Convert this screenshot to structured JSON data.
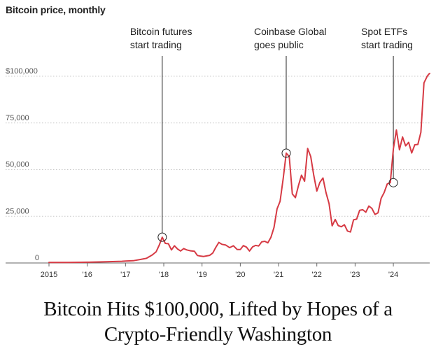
{
  "header": {
    "title": "Bitcoin price, monthly"
  },
  "headline": {
    "line1": "Bitcoin Hits $100,000, Lifted by Hopes of a",
    "line2": "Crypto-Friendly Washington"
  },
  "colors": {
    "line": "#d63a44",
    "grid": "#c8c8c8",
    "axis": "#666666",
    "annotation": "#222222"
  },
  "chart_data": {
    "type": "line",
    "title": "Bitcoin price, monthly",
    "xlabel": "",
    "ylabel": "",
    "xlim": [
      2015.0,
      2024.95
    ],
    "ylim": [
      0,
      100000
    ],
    "grid": true,
    "legend": "none",
    "y_ticks": [
      {
        "value": 0,
        "label": "0"
      },
      {
        "value": 25000,
        "label": "25,000"
      },
      {
        "value": 50000,
        "label": "50,000"
      },
      {
        "value": 75000,
        "label": "75,000"
      },
      {
        "value": 100000,
        "label": "$100,000"
      }
    ],
    "x_ticks": [
      {
        "value": 2015,
        "label": "2015"
      },
      {
        "value": 2016,
        "label": "'16"
      },
      {
        "value": 2017,
        "label": "'17"
      },
      {
        "value": 2018,
        "label": "'18"
      },
      {
        "value": 2019,
        "label": "'19"
      },
      {
        "value": 2020,
        "label": "'20"
      },
      {
        "value": 2021,
        "label": "'21"
      },
      {
        "value": 2022,
        "label": "'22"
      },
      {
        "value": 2023,
        "label": "'23"
      },
      {
        "value": 2024,
        "label": "'24"
      }
    ],
    "series": [
      {
        "x": [
          2015.0,
          2015.5,
          2016.0,
          2016.5,
          2016.9,
          2017.0,
          2017.2,
          2017.4,
          2017.55,
          2017.7,
          2017.8,
          2017.88,
          2017.96,
          2018.04,
          2018.12,
          2018.2,
          2018.28,
          2018.36,
          2018.44,
          2018.52,
          2018.6,
          2018.7,
          2018.8,
          2018.88,
          2018.96,
          2019.04,
          2019.12,
          2019.2,
          2019.28,
          2019.36,
          2019.44,
          2019.52,
          2019.62,
          2019.72,
          2019.82,
          2019.92,
          2020.0,
          2020.08,
          2020.16,
          2020.24,
          2020.32,
          2020.4,
          2020.48,
          2020.56,
          2020.64,
          2020.72,
          2020.8,
          2020.88,
          2020.96,
          2021.04,
          2021.12,
          2021.2,
          2021.28,
          2021.36,
          2021.44,
          2021.52,
          2021.6,
          2021.68,
          2021.76,
          2021.84,
          2021.92,
          2022.0,
          2022.08,
          2022.16,
          2022.24,
          2022.32,
          2022.4,
          2022.48,
          2022.56,
          2022.64,
          2022.72,
          2022.8,
          2022.88,
          2022.96,
          2023.04,
          2023.12,
          2023.2,
          2023.28,
          2023.36,
          2023.44,
          2023.52,
          2023.6,
          2023.68,
          2023.76,
          2023.84,
          2023.92,
          2024.0,
          2024.08,
          2024.16,
          2024.24,
          2024.32,
          2024.4,
          2024.48,
          2024.56,
          2024.64,
          2024.72,
          2024.8,
          2024.88,
          2024.92,
          2024.95
        ],
        "values": [
          300,
          250,
          400,
          650,
          900,
          1000,
          1200,
          1900,
          2500,
          4300,
          6000,
          9500,
          13800,
          10500,
          10300,
          7000,
          9200,
          7500,
          6400,
          7700,
          7000,
          6500,
          6300,
          4000,
          3700,
          3500,
          3800,
          4100,
          5300,
          8400,
          11000,
          10000,
          9600,
          8200,
          9200,
          7200,
          7200,
          9300,
          8500,
          6400,
          8600,
          9400,
          9100,
          11300,
          11600,
          10800,
          13700,
          19000,
          29000,
          33000,
          45000,
          58800,
          57000,
          37000,
          35000,
          41500,
          47000,
          43800,
          61300,
          57000,
          47000,
          38500,
          43200,
          45500,
          37700,
          31800,
          19900,
          23300,
          20000,
          19400,
          20500,
          17100,
          16600,
          23100,
          23500,
          28200,
          28500,
          27200,
          30500,
          29200,
          26000,
          26900,
          34600,
          37700,
          42300,
          43000,
          61100,
          71200,
          60600,
          67500,
          62700,
          64600,
          58900,
          63300,
          63500,
          70000,
          96400,
          99800,
          101000,
          101500
        ]
      }
    ],
    "annotations": [
      {
        "label_line1": "Bitcoin futures",
        "label_line2": "start trading",
        "x": 2017.96,
        "y": 13800
      },
      {
        "label_line1": "Coinbase Global",
        "label_line2": "goes public",
        "x": 2021.2,
        "y": 58800
      },
      {
        "label_line1": "Spot ETFs",
        "label_line2": "start trading",
        "x": 2024.0,
        "y": 43000
      }
    ]
  }
}
